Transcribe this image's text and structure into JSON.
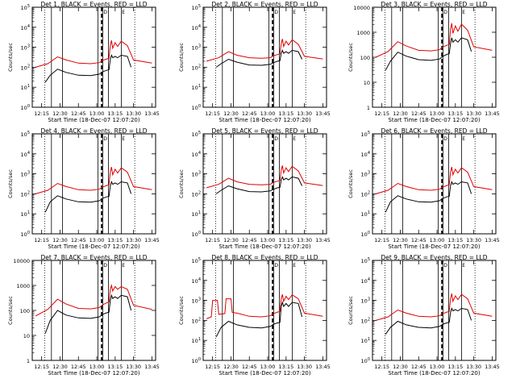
{
  "time_labels": [
    "12:15",
    "12:30",
    "12:45",
    "13:00",
    "13:15",
    "13:30",
    "13:45"
  ],
  "xlabel": "Start Time (18-Dec-07 12:07:20)",
  "ylabel": "Counts/sec",
  "marker_label_1": "D",
  "marker_label_2": "E",
  "colors": {
    "events": "#000000",
    "lld": "#e00000",
    "axis": "#000000"
  },
  "chart_data": [
    {
      "type": "line",
      "title": "Det 1, BLACK = Events, RED = LLD",
      "xlabel": "Start Time (18-Dec-07 12:07:20)",
      "ylabel": "Counts/sec",
      "x": [
        "12:15",
        "12:30",
        "12:45",
        "13:00",
        "13:15",
        "13:30",
        "13:45"
      ],
      "ylim": [
        1,
        100000
      ],
      "yscale": "log",
      "ytick_labels": [
        "10^0",
        "10^1",
        "10^2",
        "10^3",
        "10^4",
        "10^5"
      ],
      "series": [
        {
          "name": "Events",
          "x": [
            "12:18",
            "12:22",
            "12:28",
            "12:35",
            "12:45",
            "12:55",
            "13:02",
            "13:05",
            "13:08",
            "13:10",
            "13:11",
            "13:12",
            "13:13",
            "13:15",
            "13:17",
            "13:20",
            "13:25",
            "13:28"
          ],
          "y": [
            18,
            40,
            80,
            55,
            40,
            38,
            45,
            60,
            70,
            75,
            250,
            400,
            300,
            350,
            300,
            400,
            350,
            100
          ]
        },
        {
          "name": "LLD",
          "x": [
            "12:10",
            "12:20",
            "12:28",
            "12:35",
            "12:45",
            "12:55",
            "13:02",
            "13:05",
            "13:08",
            "13:10",
            "13:11",
            "13:12",
            "13:13",
            "13:15",
            "13:17",
            "13:20",
            "13:25",
            "13:30",
            "13:45"
          ],
          "y": [
            100,
            150,
            330,
            230,
            160,
            150,
            170,
            220,
            260,
            280,
            1200,
            2200,
            900,
            1700,
            1100,
            2000,
            1200,
            230,
            160
          ]
        }
      ]
    },
    {
      "type": "line",
      "title": "Det 2, BLACK = Events, RED = LLD",
      "xlabel": "Start Time (18-Dec-07 12:07:20)",
      "ylabel": "Counts/sec",
      "x": [
        "12:15",
        "12:30",
        "12:45",
        "13:00",
        "13:15",
        "13:30",
        "13:45"
      ],
      "ylim": [
        1,
        100000
      ],
      "yscale": "log",
      "ytick_labels": [
        "10^0",
        "10^1",
        "10^2",
        "10^3",
        "10^4",
        "10^5"
      ],
      "series": [
        {
          "name": "Events",
          "x": [
            "12:18",
            "12:22",
            "12:28",
            "12:35",
            "12:45",
            "12:55",
            "13:02",
            "13:05",
            "13:08",
            "13:10",
            "13:11",
            "13:12",
            "13:13",
            "13:15",
            "13:17",
            "13:20",
            "13:25",
            "13:28"
          ],
          "y": [
            100,
            150,
            250,
            180,
            130,
            125,
            140,
            170,
            200,
            210,
            500,
            700,
            500,
            600,
            500,
            700,
            600,
            250
          ]
        },
        {
          "name": "LLD",
          "x": [
            "12:10",
            "12:20",
            "12:28",
            "12:35",
            "12:45",
            "12:55",
            "13:02",
            "13:05",
            "13:08",
            "13:10",
            "13:11",
            "13:12",
            "13:13",
            "13:15",
            "13:17",
            "13:20",
            "13:25",
            "13:30",
            "13:45"
          ],
          "y": [
            200,
            300,
            600,
            400,
            300,
            280,
            300,
            380,
            430,
            460,
            1500,
            2600,
            1100,
            2000,
            1300,
            2400,
            1400,
            350,
            260
          ]
        }
      ]
    },
    {
      "type": "line",
      "title": "Det 3, BLACK = Events, RED = LLD",
      "xlabel": "Start Time (18-Dec-07 12:07:20)",
      "ylabel": "Counts/sec",
      "x": [
        "12:15",
        "12:30",
        "12:45",
        "13:00",
        "13:15",
        "13:30",
        "13:45"
      ],
      "ylim": [
        1,
        10000
      ],
      "yscale": "log",
      "ytick_labels": [
        "1",
        "10",
        "100",
        "1000",
        "10000"
      ],
      "series": [
        {
          "name": "Events",
          "x": [
            "12:18",
            "12:22",
            "12:28",
            "12:35",
            "12:45",
            "12:55",
            "13:02",
            "13:05",
            "13:08",
            "13:10",
            "13:11",
            "13:12",
            "13:13",
            "13:15",
            "13:17",
            "13:20",
            "13:25",
            "13:28"
          ],
          "y": [
            30,
            70,
            160,
            110,
            80,
            75,
            85,
            110,
            130,
            140,
            350,
            600,
            400,
            500,
            400,
            600,
            500,
            170
          ]
        },
        {
          "name": "LLD",
          "x": [
            "12:10",
            "12:20",
            "12:28",
            "12:35",
            "12:45",
            "12:55",
            "13:02",
            "13:05",
            "13:08",
            "13:10",
            "13:11",
            "13:12",
            "13:13",
            "13:15",
            "13:17",
            "13:20",
            "13:25",
            "13:30",
            "13:45"
          ],
          "y": [
            100,
            170,
            420,
            280,
            190,
            180,
            200,
            260,
            300,
            320,
            1300,
            2300,
            900,
            1800,
            1100,
            2100,
            1200,
            260,
            190
          ]
        }
      ]
    },
    {
      "type": "line",
      "title": "Det 4, BLACK = Events, RED = LLD",
      "xlabel": "Start Time (18-Dec-07 12:07:20)",
      "ylabel": "Counts/sec",
      "x": [
        "12:15",
        "12:30",
        "12:45",
        "13:00",
        "13:15",
        "13:30",
        "13:45"
      ],
      "ylim": [
        1,
        100000
      ],
      "yscale": "log",
      "ytick_labels": [
        "10^0",
        "10^1",
        "10^2",
        "10^3",
        "10^4",
        "10^5"
      ],
      "series": [
        {
          "name": "Events",
          "x": [
            "12:18",
            "12:22",
            "12:28",
            "12:35",
            "12:45",
            "12:55",
            "13:02",
            "13:05",
            "13:08",
            "13:10",
            "13:11",
            "13:12",
            "13:13",
            "13:15",
            "13:17",
            "13:20",
            "13:25",
            "13:28"
          ],
          "y": [
            12,
            40,
            80,
            55,
            40,
            38,
            45,
            60,
            70,
            75,
            250,
            400,
            300,
            350,
            300,
            400,
            350,
            100
          ]
        },
        {
          "name": "LLD",
          "x": [
            "12:10",
            "12:20",
            "12:28",
            "12:35",
            "12:45",
            "12:55",
            "13:02",
            "13:05",
            "13:08",
            "13:10",
            "13:11",
            "13:12",
            "13:13",
            "13:15",
            "13:17",
            "13:20",
            "13:25",
            "13:30",
            "13:45"
          ],
          "y": [
            100,
            150,
            330,
            230,
            160,
            150,
            170,
            220,
            260,
            280,
            1200,
            2200,
            900,
            1700,
            1100,
            2000,
            1200,
            230,
            160
          ]
        }
      ]
    },
    {
      "type": "line",
      "title": "Det 5, BLACK = Events, RED = LLD",
      "xlabel": "Start Time (18-Dec-07 12:07:20)",
      "ylabel": "Counts/sec",
      "x": [
        "12:15",
        "12:30",
        "12:45",
        "13:00",
        "13:15",
        "13:30",
        "13:45"
      ],
      "ylim": [
        1,
        100000
      ],
      "yscale": "log",
      "ytick_labels": [
        "10^0",
        "10^1",
        "10^2",
        "10^3",
        "10^4",
        "10^5"
      ],
      "series": [
        {
          "name": "Events",
          "x": [
            "12:18",
            "12:22",
            "12:28",
            "12:35",
            "12:45",
            "12:55",
            "13:02",
            "13:05",
            "13:08",
            "13:10",
            "13:11",
            "13:12",
            "13:13",
            "13:15",
            "13:17",
            "13:20",
            "13:25",
            "13:28"
          ],
          "y": [
            100,
            150,
            250,
            180,
            130,
            125,
            140,
            170,
            200,
            210,
            500,
            700,
            500,
            600,
            500,
            700,
            600,
            250
          ]
        },
        {
          "name": "LLD",
          "x": [
            "12:10",
            "12:20",
            "12:28",
            "12:35",
            "12:45",
            "12:55",
            "13:02",
            "13:05",
            "13:08",
            "13:10",
            "13:11",
            "13:12",
            "13:13",
            "13:15",
            "13:17",
            "13:20",
            "13:25",
            "13:30",
            "13:45"
          ],
          "y": [
            200,
            300,
            600,
            400,
            300,
            280,
            300,
            380,
            430,
            460,
            1500,
            2600,
            1100,
            2000,
            1300,
            2400,
            1400,
            350,
            260
          ]
        }
      ]
    },
    {
      "type": "line",
      "title": "Det 6, BLACK = Events, RED = LLD",
      "xlabel": "Start Time (18-Dec-07 12:07:20)",
      "ylabel": "Counts/sec",
      "x": [
        "12:15",
        "12:30",
        "12:45",
        "13:00",
        "13:15",
        "13:30",
        "13:45"
      ],
      "ylim": [
        1,
        100000
      ],
      "yscale": "log",
      "ytick_labels": [
        "10^0",
        "10^1",
        "10^2",
        "10^3",
        "10^4",
        "10^5"
      ],
      "series": [
        {
          "name": "Events",
          "x": [
            "12:18",
            "12:22",
            "12:28",
            "12:35",
            "12:45",
            "12:55",
            "13:02",
            "13:05",
            "13:08",
            "13:10",
            "13:11",
            "13:12",
            "13:13",
            "13:15",
            "13:17",
            "13:20",
            "13:25",
            "13:28"
          ],
          "y": [
            12,
            40,
            80,
            55,
            40,
            38,
            45,
            60,
            70,
            75,
            250,
            400,
            300,
            350,
            300,
            400,
            350,
            100
          ]
        },
        {
          "name": "LLD",
          "x": [
            "12:10",
            "12:20",
            "12:28",
            "12:35",
            "12:45",
            "12:55",
            "13:02",
            "13:05",
            "13:08",
            "13:10",
            "13:11",
            "13:12",
            "13:13",
            "13:15",
            "13:17",
            "13:20",
            "13:25",
            "13:30",
            "13:45"
          ],
          "y": [
            100,
            150,
            330,
            230,
            160,
            150,
            170,
            220,
            260,
            280,
            1200,
            2200,
            900,
            1700,
            1100,
            2000,
            1200,
            230,
            160
          ]
        }
      ]
    },
    {
      "type": "line",
      "title": "Det 7, BLACK = Events, RED = LLD",
      "xlabel": "Start Time (18-Dec-07 12:07:20)",
      "ylabel": "Counts/sec",
      "x": [
        "12:15",
        "12:30",
        "12:45",
        "13:00",
        "13:15",
        "13:30",
        "13:45"
      ],
      "ylim": [
        1,
        10000
      ],
      "yscale": "log",
      "ytick_labels": [
        "1",
        "10",
        "100",
        "1000",
        "10000"
      ],
      "series": [
        {
          "name": "Events",
          "x": [
            "12:18",
            "12:22",
            "12:28",
            "12:35",
            "12:45",
            "12:55",
            "13:02",
            "13:05",
            "13:08",
            "13:10",
            "13:11",
            "13:12",
            "13:13",
            "13:15",
            "13:17",
            "13:20",
            "13:25",
            "13:28"
          ],
          "y": [
            12,
            40,
            100,
            65,
            50,
            48,
            55,
            70,
            80,
            85,
            250,
            400,
            300,
            350,
            300,
            400,
            350,
            100
          ]
        },
        {
          "name": "LLD",
          "x": [
            "12:10",
            "12:20",
            "12:28",
            "12:35",
            "12:45",
            "12:55",
            "13:02",
            "13:05",
            "13:08",
            "13:10",
            "13:11",
            "13:12",
            "13:13",
            "13:15",
            "13:17",
            "13:20",
            "13:25",
            "13:30",
            "13:45"
          ],
          "y": [
            60,
            110,
            280,
            180,
            120,
            115,
            130,
            170,
            200,
            220,
            700,
            1000,
            600,
            900,
            700,
            900,
            700,
            160,
            110
          ]
        }
      ]
    },
    {
      "type": "line",
      "title": "Det 8, BLACK = Events, RED = LLD",
      "xlabel": "Start Time (18-Dec-07 12:07:20)",
      "ylabel": "Counts/sec",
      "x": [
        "12:15",
        "12:30",
        "12:45",
        "13:00",
        "13:15",
        "13:30",
        "13:45"
      ],
      "ylim": [
        1,
        100000
      ],
      "yscale": "log",
      "ytick_labels": [
        "10^0",
        "10^1",
        "10^2",
        "10^3",
        "10^4",
        "10^5"
      ],
      "series": [
        {
          "name": "Events",
          "x": [
            "12:18",
            "12:22",
            "12:28",
            "12:35",
            "12:45",
            "12:55",
            "13:02",
            "13:05",
            "13:08",
            "13:10",
            "13:11",
            "13:12",
            "13:13",
            "13:15",
            "13:17",
            "13:20",
            "13:25",
            "13:28"
          ],
          "y": [
            15,
            45,
            90,
            60,
            45,
            42,
            50,
            65,
            75,
            80,
            500,
            800,
            500,
            700,
            500,
            800,
            700,
            150
          ]
        },
        {
          "name": "LLD",
          "x": [
            "12:10",
            "12:14",
            "12:15",
            "12:19",
            "12:20",
            "12:25",
            "12:26",
            "12:30",
            "12:31",
            "12:35",
            "12:45",
            "12:55",
            "13:02",
            "13:05",
            "13:08",
            "13:10",
            "13:11",
            "13:12",
            "13:13",
            "13:15",
            "13:17",
            "13:20",
            "13:25",
            "13:30",
            "13:45"
          ],
          "y": [
            120,
            150,
            1000,
            1000,
            200,
            220,
            1200,
            1200,
            250,
            230,
            160,
            150,
            170,
            220,
            260,
            280,
            1200,
            2000,
            900,
            1600,
            1100,
            1900,
            1200,
            230,
            160
          ]
        }
      ]
    },
    {
      "type": "line",
      "title": "Det 9, BLACK = Events, RED = LLD",
      "xlabel": "Start Time (18-Dec-07 12:07:20)",
      "ylabel": "Counts/sec",
      "x": [
        "12:15",
        "12:30",
        "12:45",
        "13:00",
        "13:15",
        "13:30",
        "13:45"
      ],
      "ylim": [
        1,
        100000
      ],
      "yscale": "log",
      "ytick_labels": [
        "10^0",
        "10^1",
        "10^2",
        "10^3",
        "10^4",
        "10^5"
      ],
      "series": [
        {
          "name": "Events",
          "x": [
            "12:18",
            "12:22",
            "12:28",
            "12:35",
            "12:45",
            "12:55",
            "13:02",
            "13:05",
            "13:08",
            "13:10",
            "13:11",
            "13:12",
            "13:13",
            "13:15",
            "13:17",
            "13:20",
            "13:25",
            "13:28"
          ],
          "y": [
            20,
            45,
            90,
            60,
            45,
            42,
            50,
            65,
            75,
            80,
            250,
            400,
            300,
            350,
            300,
            400,
            350,
            100
          ]
        },
        {
          "name": "LLD",
          "x": [
            "12:10",
            "12:20",
            "12:28",
            "12:35",
            "12:45",
            "12:55",
            "13:02",
            "13:05",
            "13:08",
            "13:10",
            "13:11",
            "13:12",
            "13:13",
            "13:15",
            "13:17",
            "13:20",
            "13:25",
            "13:30",
            "13:45"
          ],
          "y": [
            100,
            150,
            330,
            230,
            160,
            150,
            170,
            220,
            260,
            280,
            1200,
            2200,
            900,
            1700,
            1100,
            2000,
            1200,
            230,
            160
          ]
        }
      ]
    }
  ]
}
